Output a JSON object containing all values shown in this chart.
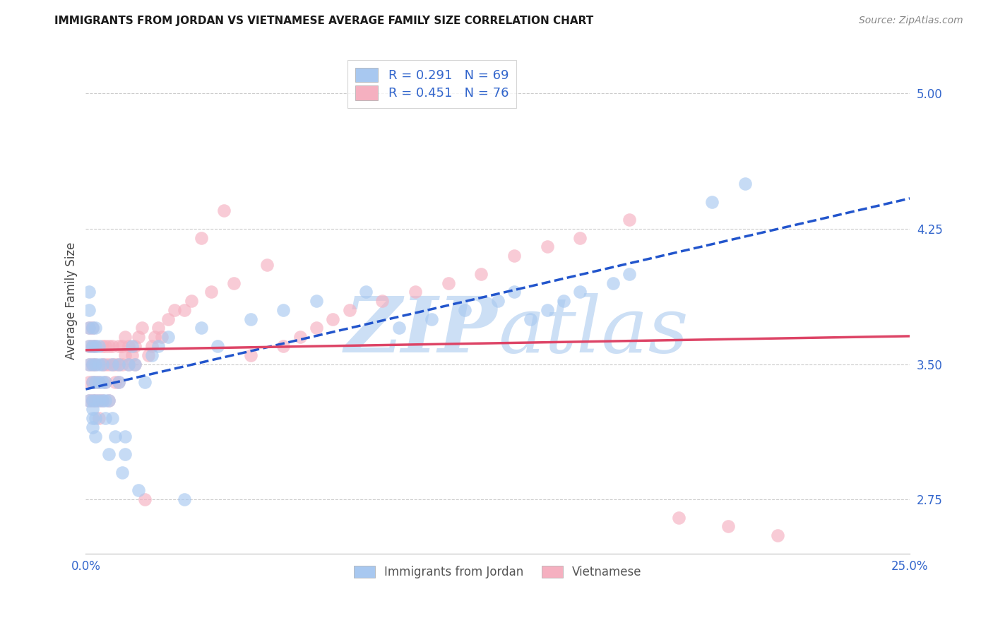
{
  "title": "IMMIGRANTS FROM JORDAN VS VIETNAMESE AVERAGE FAMILY SIZE CORRELATION CHART",
  "source": "Source: ZipAtlas.com",
  "ylabel": "Average Family Size",
  "yticks": [
    2.75,
    3.5,
    4.25,
    5.0
  ],
  "xlim": [
    0.0,
    0.25
  ],
  "ylim": [
    2.45,
    5.25
  ],
  "jordan_R": 0.291,
  "jordan_N": 69,
  "vietnamese_R": 0.451,
  "vietnamese_N": 76,
  "jordan_color": "#a8c8f0",
  "vietnamese_color": "#f5b0c0",
  "jordan_line_color": "#2255cc",
  "vietnamese_line_color": "#dd4466",
  "background_color": "#ffffff",
  "grid_color": "#cccccc",
  "watermark_color": "#ccdff5",
  "jordan_x": [
    0.001,
    0.001,
    0.001,
    0.001,
    0.001,
    0.001,
    0.002,
    0.002,
    0.002,
    0.002,
    0.002,
    0.002,
    0.002,
    0.002,
    0.003,
    0.003,
    0.003,
    0.003,
    0.003,
    0.003,
    0.003,
    0.004,
    0.004,
    0.004,
    0.004,
    0.005,
    0.005,
    0.005,
    0.006,
    0.006,
    0.006,
    0.007,
    0.007,
    0.008,
    0.008,
    0.009,
    0.01,
    0.01,
    0.011,
    0.012,
    0.012,
    0.013,
    0.014,
    0.015,
    0.016,
    0.018,
    0.02,
    0.022,
    0.025,
    0.03,
    0.035,
    0.04,
    0.05,
    0.06,
    0.07,
    0.085,
    0.095,
    0.105,
    0.115,
    0.125,
    0.13,
    0.135,
    0.14,
    0.145,
    0.15,
    0.16,
    0.165,
    0.19,
    0.2
  ],
  "jordan_y": [
    3.5,
    3.6,
    3.7,
    3.8,
    3.9,
    3.3,
    3.4,
    3.5,
    3.6,
    3.7,
    3.3,
    3.2,
    3.25,
    3.15,
    3.4,
    3.5,
    3.6,
    3.7,
    3.3,
    3.2,
    3.1,
    3.5,
    3.6,
    3.4,
    3.3,
    3.4,
    3.3,
    3.5,
    3.4,
    3.3,
    3.2,
    3.3,
    3.0,
    3.2,
    3.5,
    3.1,
    3.4,
    3.5,
    2.9,
    3.0,
    3.1,
    3.5,
    3.6,
    3.5,
    2.8,
    3.4,
    3.55,
    3.6,
    3.65,
    2.75,
    3.7,
    3.6,
    3.75,
    3.8,
    3.85,
    3.9,
    3.7,
    3.75,
    3.8,
    3.85,
    3.9,
    3.75,
    3.8,
    3.85,
    3.9,
    3.95,
    4.0,
    4.4,
    4.5
  ],
  "vietnamese_x": [
    0.001,
    0.001,
    0.001,
    0.001,
    0.001,
    0.002,
    0.002,
    0.002,
    0.002,
    0.002,
    0.003,
    0.003,
    0.003,
    0.003,
    0.004,
    0.004,
    0.004,
    0.005,
    0.005,
    0.005,
    0.006,
    0.006,
    0.006,
    0.007,
    0.007,
    0.007,
    0.008,
    0.008,
    0.009,
    0.009,
    0.01,
    0.01,
    0.01,
    0.011,
    0.011,
    0.012,
    0.012,
    0.013,
    0.013,
    0.014,
    0.015,
    0.015,
    0.016,
    0.017,
    0.018,
    0.019,
    0.02,
    0.021,
    0.022,
    0.023,
    0.025,
    0.027,
    0.03,
    0.032,
    0.035,
    0.038,
    0.042,
    0.045,
    0.05,
    0.055,
    0.06,
    0.065,
    0.07,
    0.075,
    0.08,
    0.09,
    0.1,
    0.11,
    0.12,
    0.13,
    0.14,
    0.15,
    0.165,
    0.18,
    0.195,
    0.21
  ],
  "vietnamese_y": [
    3.5,
    3.6,
    3.4,
    3.3,
    3.7,
    3.5,
    3.6,
    3.4,
    3.3,
    3.7,
    3.5,
    3.4,
    3.3,
    3.6,
    3.4,
    3.3,
    3.2,
    3.5,
    3.6,
    3.3,
    3.5,
    3.6,
    3.4,
    3.5,
    3.6,
    3.3,
    3.5,
    3.6,
    3.4,
    3.5,
    3.5,
    3.4,
    3.6,
    3.6,
    3.5,
    3.55,
    3.65,
    3.6,
    3.5,
    3.55,
    3.6,
    3.5,
    3.65,
    3.7,
    2.75,
    3.55,
    3.6,
    3.65,
    3.7,
    3.65,
    3.75,
    3.8,
    3.8,
    3.85,
    4.2,
    3.9,
    4.35,
    3.95,
    3.55,
    4.05,
    3.6,
    3.65,
    3.7,
    3.75,
    3.8,
    3.85,
    3.9,
    3.95,
    4.0,
    4.1,
    4.15,
    4.2,
    4.3,
    2.65,
    2.6,
    2.55
  ]
}
